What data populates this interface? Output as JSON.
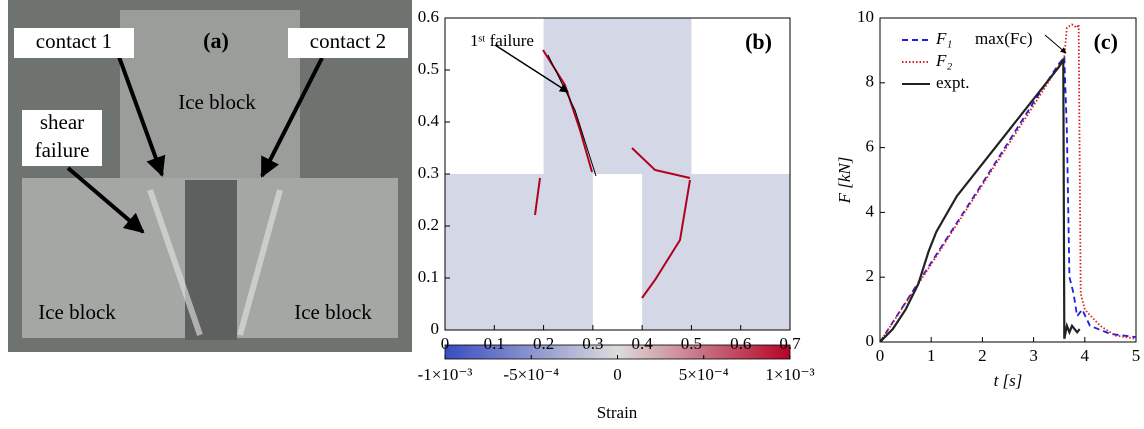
{
  "photo": {
    "panel_label": "(a)",
    "contact_1": "contact 1",
    "contact_2": "contact 2",
    "shear_failure": [
      "shear",
      "failure"
    ],
    "ice_block_top": "Ice block",
    "ice_block_left": "Ice block",
    "ice_block_right": "Ice block"
  },
  "chart_data": [
    {
      "type": "heatmap",
      "panel_label": "(b)",
      "annotation": "1ˢᵗ failure",
      "xlim": [
        0,
        0.7
      ],
      "xticks": [
        0,
        0.1,
        0.2,
        0.3,
        0.4,
        0.5,
        0.6,
        0.7
      ],
      "ylim": [
        0,
        0.6
      ],
      "yticks": [
        0,
        0.1,
        0.2,
        0.3,
        0.4,
        0.5,
        0.6
      ],
      "colorbar_label": "Strain",
      "clim": [
        -0.001,
        0.001
      ],
      "cticks": [
        {
          "value": -0.001,
          "label": "-1×10⁻³"
        },
        {
          "value": -0.0005,
          "label": "-5×10⁻⁴"
        },
        0,
        {
          "value": 0.0005,
          "label": "5×10⁻⁴"
        },
        {
          "value": 0.001,
          "label": "1×10⁻³"
        }
      ]
    },
    {
      "type": "line",
      "panel_label": "(c)",
      "xlabel": "t [s]",
      "ylabel": "F [kN]",
      "annotation": "max(Fc)",
      "xlim": [
        0,
        5
      ],
      "xticks": [
        0,
        1,
        2,
        3,
        4,
        5
      ],
      "ylim": [
        0,
        10
      ],
      "yticks": [
        0,
        2,
        4,
        6,
        8,
        10
      ],
      "series": [
        {
          "name": "F₁",
          "color": "#1f1fdc",
          "dash": "6,4",
          "x": [
            0,
            1,
            2,
            3,
            3.5,
            3.6,
            3.65,
            3.7,
            3.78,
            3.85,
            3.95,
            4.1,
            4.5,
            5
          ],
          "values": [
            0,
            2.45,
            4.9,
            7.4,
            8.6,
            8.8,
            6.5,
            2.0,
            1.5,
            0.8,
            1.0,
            0.5,
            0.25,
            0.15
          ]
        },
        {
          "name": "F₂",
          "color": "#dc1f1f",
          "dash": "1.5,2",
          "x": [
            0,
            1,
            2,
            3,
            3.6,
            3.65,
            3.75,
            3.85,
            3.88,
            3.92,
            4.0,
            4.3,
            4.6,
            5
          ],
          "values": [
            0,
            2.4,
            4.85,
            7.3,
            8.8,
            9.7,
            9.8,
            9.7,
            9.8,
            1.5,
            1.0,
            0.5,
            0.2,
            0.1
          ]
        },
        {
          "name": "expt.",
          "color": "#222222",
          "dash": "",
          "x": [
            0,
            0.25,
            0.5,
            0.75,
            0.95,
            1.1,
            1.5,
            2,
            2.5,
            3,
            3.5,
            3.58,
            3.6,
            3.65,
            3.7,
            3.75,
            3.85,
            3.9
          ],
          "values": [
            0,
            0.4,
            1.0,
            1.8,
            2.8,
            3.4,
            4.5,
            5.5,
            6.5,
            7.5,
            8.5,
            8.7,
            0.1,
            0.5,
            0.3,
            0.5,
            0.3,
            0.4
          ]
        }
      ]
    }
  ]
}
